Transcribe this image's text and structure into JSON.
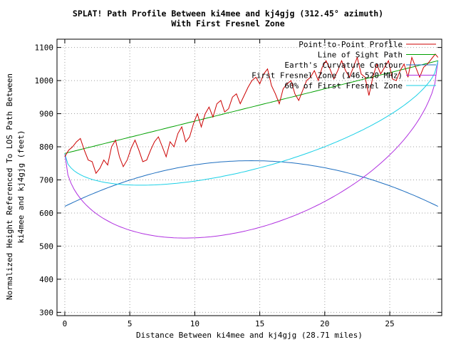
{
  "chart_data": {
    "type": "line",
    "title_line1": "SPLAT! Path Profile Between ki4mee and kj4gjg (312.45° azimuth)",
    "title_line2": "With First Fresnel Zone",
    "xlabel": "Distance Between ki4mee and kj4gjg (28.71 miles)",
    "ylabel_line1": "Normalized Height Referenced To LOS Path Between",
    "ylabel_line2": "ki4mee and kj4gjg (feet)",
    "xlim": [
      -0.6,
      29.0
    ],
    "ylim": [
      290,
      1125
    ],
    "x_ticks": [
      0,
      5,
      10,
      15,
      20,
      25
    ],
    "y_ticks": [
      300,
      400,
      500,
      600,
      700,
      800,
      900,
      1000,
      1100
    ],
    "grid": true,
    "legend_position": "top-right",
    "path_length": 28.71,
    "series": [
      {
        "name": "Point-to-Point Profile",
        "color": "#cc0000",
        "x": [
          0,
          0.3,
          0.6,
          0.9,
          1.2,
          1.5,
          1.8,
          2.1,
          2.4,
          2.7,
          3.0,
          3.3,
          3.6,
          3.9,
          4.2,
          4.5,
          4.8,
          5.1,
          5.4,
          5.7,
          6.0,
          6.3,
          6.6,
          6.9,
          7.2,
          7.5,
          7.8,
          8.1,
          8.4,
          8.7,
          9.0,
          9.3,
          9.6,
          9.9,
          10.2,
          10.5,
          10.8,
          11.1,
          11.4,
          11.7,
          12.0,
          12.3,
          12.6,
          12.9,
          13.2,
          13.5,
          13.8,
          14.1,
          14.4,
          14.7,
          15.0,
          15.3,
          15.6,
          15.9,
          16.2,
          16.5,
          16.8,
          17.1,
          17.4,
          17.7,
          18.0,
          18.3,
          18.6,
          18.9,
          19.2,
          19.5,
          19.8,
          20.1,
          20.4,
          20.7,
          21.0,
          21.3,
          21.6,
          21.9,
          22.2,
          22.5,
          22.8,
          23.1,
          23.4,
          23.7,
          24.0,
          24.3,
          24.6,
          24.9,
          25.2,
          25.5,
          25.8,
          26.1,
          26.4,
          26.7,
          27.0,
          27.3,
          27.6,
          27.9,
          28.2,
          28.5,
          28.71
        ],
        "values": [
          770,
          790,
          800,
          815,
          825,
          790,
          760,
          755,
          720,
          735,
          760,
          745,
          800,
          820,
          770,
          740,
          760,
          795,
          820,
          790,
          755,
          760,
          790,
          815,
          830,
          800,
          770,
          815,
          800,
          840,
          860,
          815,
          830,
          870,
          900,
          860,
          900,
          920,
          890,
          930,
          940,
          905,
          915,
          950,
          960,
          930,
          955,
          980,
          1000,
          1010,
          990,
          1020,
          1035,
          985,
          960,
          930,
          975,
          990,
          1000,
          960,
          940,
          970,
          1000,
          1010,
          1030,
          1000,
          1040,
          1060,
          1035,
          1005,
          1030,
          1060,
          1030,
          1010,
          1040,
          1070,
          1020,
          1010,
          955,
          1010,
          1050,
          1020,
          1040,
          1060,
          1005,
          1000,
          1030,
          1050,
          1010,
          1070,
          1040,
          1010,
          1040,
          1050,
          1065,
          1080,
          1070
        ]
      },
      {
        "name": "Line of Sight Path",
        "color": "#00a000"
      },
      {
        "name": "Earth's Curvature Contour",
        "color": "#1f6fc0"
      },
      {
        "name": "First Fresnel Zone (146.520 MHz)",
        "color": "#b030e0"
      },
      {
        "name": "60% of First Fresnel Zone",
        "color": "#1ad0e6"
      }
    ],
    "los": {
      "start": 780,
      "end": 1060
    },
    "curvature": {
      "ends": 620,
      "peak": 758
    },
    "fresnel_depth": 370,
    "fresnel60_depth": 190
  }
}
